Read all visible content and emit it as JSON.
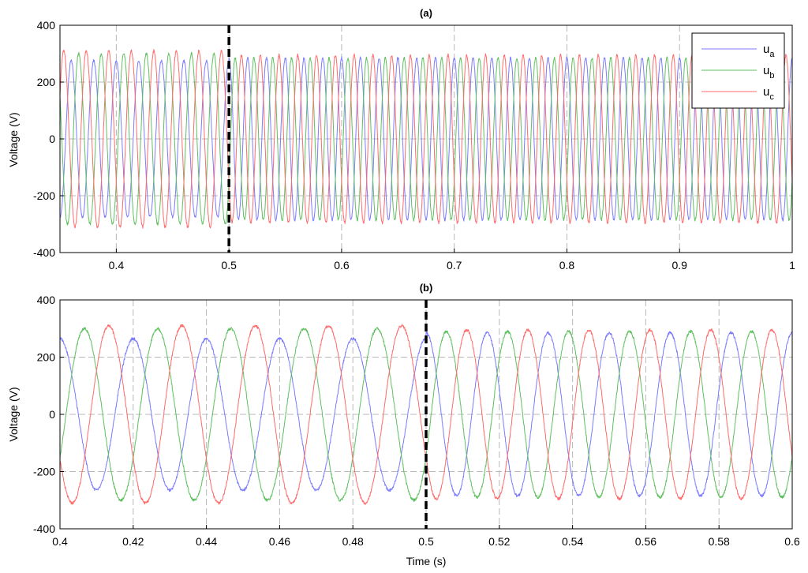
{
  "colors": {
    "ua": "#7b7bff",
    "ub": "#5fc05f",
    "uc": "#ff6b6b",
    "marker": "#000000",
    "grid": "#b8b8b8"
  },
  "chart_data": [
    {
      "type": "line",
      "title": "(a)",
      "xlabel": "",
      "ylabel": "Voltage (V)",
      "xlim": [
        0.35,
        1.0
      ],
      "ylim": [
        -400,
        400
      ],
      "xticks": [
        0.4,
        0.5,
        0.6,
        0.7,
        0.8,
        0.9,
        1.0
      ],
      "xtick_labels": [
        "0.4",
        "0.5",
        "0.6",
        "0.7",
        "0.8",
        "0.9",
        "1"
      ],
      "yticks": [
        -400,
        -200,
        0,
        200,
        400
      ],
      "ytick_labels": [
        "-400",
        "-200",
        "0",
        "200",
        "400"
      ],
      "grid": true,
      "legend_position": "top-right",
      "marker_x": 0.5,
      "series": [
        {
          "name": "a",
          "color_key": "ua",
          "phase_deg": 0,
          "amp_before": 275,
          "amp_after": 285,
          "freq_before": 50,
          "freq_after": 60
        },
        {
          "name": "b",
          "color_key": "ub",
          "phase_deg": -120,
          "amp_before": 300,
          "amp_after": 285,
          "freq_before": 50,
          "freq_after": 60
        },
        {
          "name": "c",
          "color_key": "uc",
          "phase_deg": 120,
          "amp_before": 310,
          "amp_after": 295,
          "freq_before": 50,
          "freq_after": 60
        }
      ],
      "legend": [
        {
          "base": "u",
          "sub": "a",
          "color_key": "ua"
        },
        {
          "base": "u",
          "sub": "b",
          "color_key": "ub"
        },
        {
          "base": "u",
          "sub": "c",
          "color_key": "uc"
        }
      ]
    },
    {
      "type": "line",
      "title": "(b)",
      "xlabel": "Time (s)",
      "ylabel": "Voltage (V)",
      "xlim": [
        0.4,
        0.6
      ],
      "ylim": [
        -400,
        400
      ],
      "xticks": [
        0.4,
        0.42,
        0.44,
        0.46,
        0.48,
        0.5,
        0.52,
        0.54,
        0.56,
        0.58,
        0.6
      ],
      "xtick_labels": [
        "0.4",
        "0.42",
        "0.44",
        "0.46",
        "0.48",
        "0.5",
        "0.52",
        "0.54",
        "0.56",
        "0.58",
        "0.6"
      ],
      "yticks": [
        -400,
        -200,
        0,
        200,
        400
      ],
      "ytick_labels": [
        "-400",
        "-200",
        "0",
        "200",
        "400"
      ],
      "grid": true,
      "marker_x": 0.5,
      "series": [
        {
          "name": "a",
          "color_key": "ua",
          "phase_deg": 0,
          "amp_before": 265,
          "amp_after": 285,
          "freq_before": 50,
          "freq_after": 60
        },
        {
          "name": "b",
          "color_key": "ub",
          "phase_deg": -120,
          "amp_before": 300,
          "amp_after": 290,
          "freq_before": 50,
          "freq_after": 60
        },
        {
          "name": "c",
          "color_key": "uc",
          "phase_deg": 120,
          "amp_before": 310,
          "amp_after": 295,
          "freq_before": 50,
          "freq_after": 60
        }
      ]
    }
  ]
}
